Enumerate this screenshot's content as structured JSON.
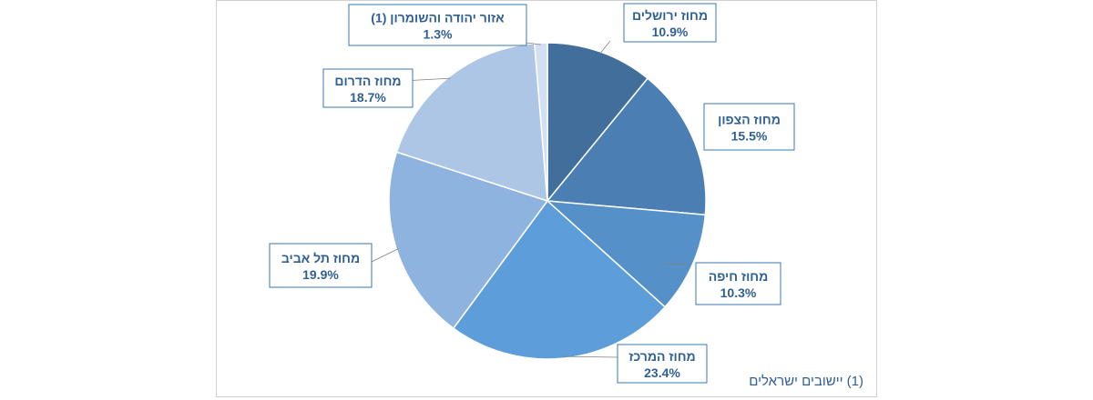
{
  "chart_data": {
    "type": "pie",
    "slices": [
      {
        "label": "מחוז ירושלים",
        "value": 10.9,
        "value_text": "10.9%",
        "color": "#426e9c"
      },
      {
        "label": "מחוז הצפון",
        "value": 15.5,
        "value_text": "15.5%",
        "color": "#4b7fb4"
      },
      {
        "label": "מחוז חיפה",
        "value": 10.3,
        "value_text": "10.3%",
        "color": "#5690c9"
      },
      {
        "label": "מחוז המרכז",
        "value": 23.4,
        "value_text": "23.4%",
        "color": "#5d9dd9"
      },
      {
        "label": "מחוז תל אביב",
        "value": 19.9,
        "value_text": "19.9%",
        "color": "#8eb3de"
      },
      {
        "label": "מחוז הדרום",
        "value": 18.7,
        "value_text": "18.7%",
        "color": "#adc6e6"
      },
      {
        "label": "אזור יהודה והשומרון (1)",
        "value": 1.3,
        "value_text": "1.3%",
        "color": "#d3e0f1"
      }
    ],
    "start_angle_deg": 0,
    "direction": "clockwise",
    "legend": "none",
    "data_labels": "callouts with leader lines"
  },
  "footnote": "(1) יישובים ישראלים",
  "colors": {
    "label_text": "#2f5f93",
    "label_border": "#3a77b5",
    "frame_border": "#d0d0d0"
  }
}
